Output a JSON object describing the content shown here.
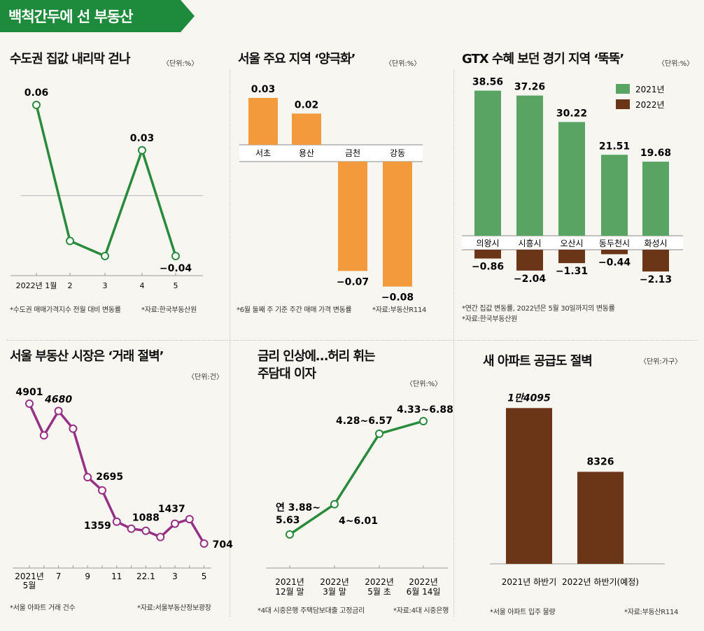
{
  "banner": "백척간두에 선 부동산",
  "colors": {
    "green_line": "#2a8a3c",
    "green_bar": "#5aa463",
    "brown_bar": "#6b3518",
    "orange_bar": "#f39a3d",
    "purple": "#963084",
    "banner_bg": "#1e8a3c"
  },
  "charts": [
    {
      "title": "수도권 집값 내리막 걷나",
      "unit": "〈단위:%〉",
      "notes": [
        "*수도권 매매가격지수 전월 대비 변동률",
        "*자료:한국부동산원"
      ],
      "chart_data": {
        "type": "line",
        "categories": [
          "2022년 1월",
          "2",
          "3",
          "4",
          "5"
        ],
        "values": [
          0.06,
          -0.03,
          -0.04,
          0.03,
          -0.04
        ],
        "labels": [
          "0.06",
          "",
          "",
          "0.03",
          "−0.04"
        ],
        "ylim": [
          -0.05,
          0.07
        ]
      }
    },
    {
      "title": "서울 주요 지역 ‘양극화’",
      "unit": "〈단위:%〉",
      "notes": [
        "*6월 둘째 주 기준 주간 매매 가격 변동률",
        "*자료:부동산R114"
      ],
      "chart_data": {
        "type": "bar",
        "categories": [
          "서초",
          "용산",
          "금천",
          "강동"
        ],
        "values": [
          0.03,
          0.02,
          -0.07,
          -0.08
        ],
        "labels": [
          "0.03",
          "0.02",
          "−0.07",
          "−0.08"
        ]
      }
    },
    {
      "title": "GTX 수혜 보던 경기 지역 ‘뚝뚝’",
      "unit": "〈단위:%〉",
      "notes": [
        "*연간 집값 변동률, 2022년은 5월 30일까지의 변동률",
        "*자료:한국부동산원"
      ],
      "chart_data": {
        "type": "bar",
        "categories": [
          "의왕시",
          "시흥시",
          "오산시",
          "동두천시",
          "화성시"
        ],
        "series": [
          {
            "name": "2021년",
            "values": [
              38.56,
              37.26,
              30.22,
              21.51,
              19.68
            ],
            "labels": [
              "38.56",
              "37.26",
              "30.22",
              "21.51",
              "19.68"
            ]
          },
          {
            "name": "2022년",
            "values": [
              -0.86,
              -2.04,
              -1.31,
              -0.44,
              -2.13
            ],
            "labels": [
              "−0.86",
              "−2.04",
              "−1.31",
              "−0.44",
              "−2.13"
            ]
          }
        ]
      }
    },
    {
      "title": "서울 부동산 시장은 ‘거래 절벽’",
      "unit": "〈단위:건〉",
      "notes": [
        "*서울 아파트 거래 건수",
        "*자료:서울부동산정보광장"
      ],
      "chart_data": {
        "type": "line",
        "tick_labels": [
          "2021년\n5월",
          "7",
          "9",
          "11",
          "22.1",
          "3",
          "5"
        ],
        "values": [
          4901,
          3950,
          4680,
          4150,
          2695,
          2300,
          1359,
          1150,
          1088,
          900,
          1300,
          1437,
          704
        ],
        "labels": [
          "4901",
          "",
          "4680",
          "",
          "2695",
          "",
          "1359",
          "",
          "1088",
          "",
          "",
          "1437",
          "704"
        ],
        "ylim": [
          400,
          5300
        ]
      }
    },
    {
      "title": "금리 인상에…허리 휘는\n주담대 이자",
      "unit": "〈단위:%〉",
      "notes": [
        "*4대 시중은행 주택담보대출 고정금리",
        "*자료:4대 시중은행"
      ],
      "chart_data": {
        "type": "line",
        "categories": [
          "2021년\n12월 말",
          "2022년\n3월 말",
          "2022년\n5월 초",
          "2022년\n6월 14일"
        ],
        "values": [
          3.88,
          4.0,
          4.28,
          4.33
        ],
        "value_ranges": [
          [
            3.88,
            5.63
          ],
          [
            4.0,
            6.01
          ],
          [
            4.28,
            6.57
          ],
          [
            4.33,
            6.88
          ]
        ],
        "labels": [
          "연 3.88~\n5.63",
          "4~6.01",
          "4.28~6.57",
          "4.33~6.88"
        ]
      }
    },
    {
      "title": "새 아파트 공급도 절벽",
      "unit": "〈단위:가구〉",
      "notes": [
        "*서울 아파트 입주 물량",
        "*자료:부동산R114"
      ],
      "chart_data": {
        "type": "bar",
        "categories": [
          "2021년 하반기",
          "2022년 하반기(예정)"
        ],
        "values": [
          14095,
          8326
        ],
        "labels": [
          "1만4095",
          "8326"
        ]
      }
    }
  ]
}
